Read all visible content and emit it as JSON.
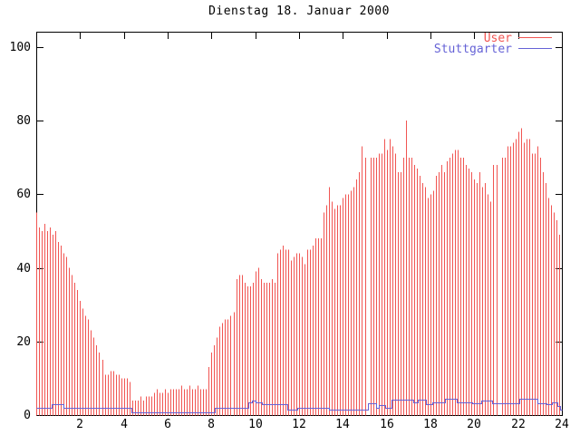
{
  "window": {
    "background": "#ffffff",
    "foreground": "#000000"
  },
  "chart_data": {
    "type": "bar",
    "title": "Dienstag 18. Januar 2000",
    "xlabel": "",
    "ylabel": "",
    "grid": false,
    "legend_position": "top-right",
    "x_axis": {
      "min": 0,
      "max": 24,
      "ticks": [
        2,
        4,
        6,
        8,
        10,
        12,
        14,
        16,
        18,
        20,
        22,
        24
      ]
    },
    "y_axis": {
      "min": 0,
      "max": 100,
      "ticks": [
        0,
        20,
        40,
        60,
        80,
        100
      ]
    },
    "series": [
      {
        "name": "User",
        "style": "impulses",
        "color": "#f15552",
        "x_start": 0,
        "x_step": 0.125,
        "values": [
          55,
          51,
          50,
          52,
          50,
          51,
          49,
          50,
          47,
          46,
          44,
          43,
          40,
          38,
          36,
          34,
          31,
          29,
          27,
          26,
          23,
          21,
          19,
          17,
          15,
          11,
          11,
          12,
          12,
          11,
          11,
          10,
          10,
          10,
          9,
          4,
          4,
          4,
          5,
          4,
          5,
          5,
          5,
          6,
          7,
          6,
          6,
          7,
          6,
          7,
          7,
          7,
          7,
          8,
          7,
          7,
          8,
          7,
          7,
          8,
          7,
          7,
          7,
          13,
          17,
          19,
          21,
          24,
          25,
          26,
          26,
          27,
          28,
          37,
          38,
          38,
          36,
          35,
          35,
          36,
          39,
          40,
          37,
          36,
          36,
          36,
          37,
          36,
          44,
          45,
          46,
          45,
          45,
          42,
          43,
          44,
          44,
          43,
          41,
          45,
          45,
          46,
          48,
          48,
          48,
          55,
          57,
          62,
          58,
          56,
          57,
          57,
          59,
          60,
          60,
          61,
          62,
          64,
          66,
          73,
          70,
          0,
          70,
          70,
          70,
          71,
          71,
          75,
          72,
          75,
          73,
          71,
          66,
          66,
          70,
          80,
          70,
          70,
          68,
          67,
          65,
          63,
          62,
          59,
          60,
          61,
          65,
          66,
          68,
          66,
          69,
          70,
          71,
          72,
          72,
          70,
          70,
          68,
          67,
          66,
          64,
          63,
          66,
          62,
          63,
          60,
          58,
          68,
          68,
          0,
          70,
          70,
          73,
          73,
          74,
          75,
          77,
          78,
          74,
          75,
          75,
          71,
          71,
          73,
          70,
          66,
          63,
          59,
          57,
          55,
          53,
          49
        ]
      },
      {
        "name": "Stuttgarter",
        "style": "step-line",
        "color": "#6562d6",
        "points": [
          [
            0,
            2
          ],
          [
            0.7,
            3
          ],
          [
            1.25,
            2
          ],
          [
            4.35,
            0.8
          ],
          [
            8.15,
            2
          ],
          [
            9.7,
            3.4
          ],
          [
            9.85,
            3.9
          ],
          [
            10.0,
            3.4
          ],
          [
            10.3,
            2.9
          ],
          [
            11.45,
            1.5
          ],
          [
            11.9,
            2
          ],
          [
            13.35,
            1.5
          ],
          [
            15.15,
            3.2
          ],
          [
            15.5,
            2
          ],
          [
            15.65,
            2.7
          ],
          [
            15.95,
            2
          ],
          [
            16.2,
            4.3
          ],
          [
            17.2,
            3.5
          ],
          [
            17.4,
            4.2
          ],
          [
            17.8,
            3
          ],
          [
            18.1,
            3.5
          ],
          [
            18.65,
            4.5
          ],
          [
            19.2,
            3.4
          ],
          [
            19.9,
            3.2
          ],
          [
            20.3,
            4
          ],
          [
            20.8,
            3.2
          ],
          [
            22.05,
            4.5
          ],
          [
            22.9,
            3.2
          ],
          [
            23.3,
            3
          ],
          [
            23.55,
            3.5
          ],
          [
            23.8,
            2.5
          ],
          [
            23.9,
            1.5
          ]
        ]
      }
    ]
  }
}
